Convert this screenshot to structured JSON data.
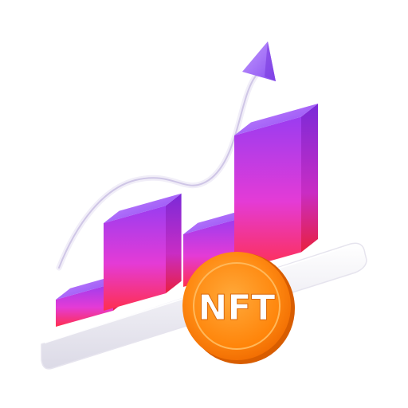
{
  "coin": {
    "label": "NFT"
  },
  "bars": [
    {
      "level": 0.17
    },
    {
      "level": 0.55
    },
    {
      "level": 0.33
    },
    {
      "level": 0.85
    }
  ],
  "colors": {
    "bar_top": "#9b3cf0",
    "bar_mid": "#e43bd6",
    "bar_bottom": "#ff2f4f",
    "coin_outer": "#ff7a00",
    "coin_inner": "#ff9a1f",
    "coin_text": "#ffffff",
    "arrow": "#a06bf5",
    "base_glass": "#ecebf3"
  },
  "icons": {
    "arrow": "trend-up-arrow-icon",
    "coin": "nft-coin-icon"
  }
}
